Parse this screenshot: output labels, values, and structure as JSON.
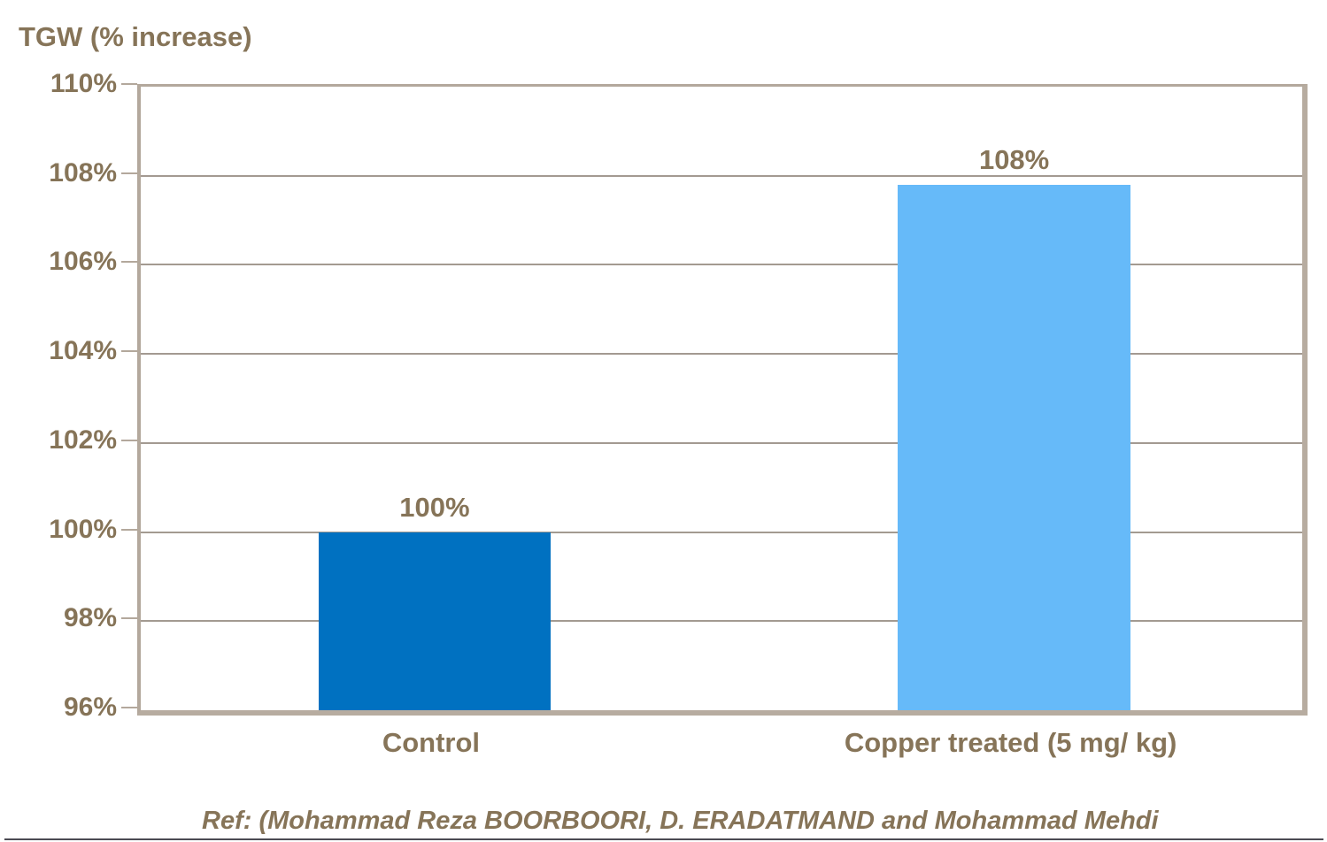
{
  "axis_title": "TGW (% increase)",
  "ref_text": "Ref: (Mohammad Reza BOORBOORI, D. ERADATMAND and Mohammad Mehdi",
  "colors": {
    "text_brown": "#867458",
    "plot_border": "#b3a89c",
    "gridline": "#a39a91",
    "bar_control": "#0071c1",
    "bar_copper": "#66baf9",
    "bottom_rule": "#4c4b53",
    "background": "#ffffff"
  },
  "chart_data": {
    "type": "bar",
    "title": "TGW (% increase)",
    "xlabel": "",
    "ylabel": "TGW (% increase)",
    "categories": [
      "Control",
      "Copper treated (5 mg/ kg)"
    ],
    "values": [
      100,
      107.8
    ],
    "value_labels": [
      "100%",
      "108%"
    ],
    "bar_colors": [
      "#0071c1",
      "#66baf9"
    ],
    "ylim": [
      96,
      110
    ],
    "yticks": [
      96,
      98,
      100,
      102,
      104,
      106,
      108,
      110
    ],
    "ytick_labels": [
      "96%",
      "98%",
      "100%",
      "102%",
      "104%",
      "106%",
      "108%",
      "110%"
    ],
    "grid": true,
    "legend": false,
    "layout": {
      "bar_center_frac": [
        0.253,
        0.752
      ],
      "bar_width_frac": 0.2
    }
  }
}
